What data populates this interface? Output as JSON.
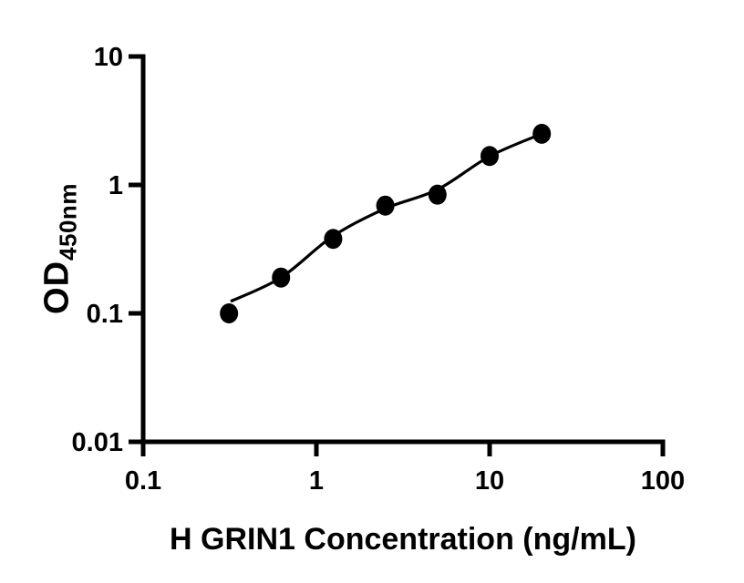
{
  "chart_data": {
    "type": "scatter",
    "title": "",
    "xlabel": "H GRIN1 Concentration (ng/mL)",
    "ylabel_main": "OD",
    "ylabel_sub": "450nm",
    "x_scale": "log",
    "y_scale": "log",
    "xlim": [
      0.1,
      100
    ],
    "ylim": [
      0.01,
      10
    ],
    "x_ticks": [
      0.1,
      1,
      10,
      100
    ],
    "x_tick_labels": [
      "0.1",
      "1",
      "10",
      "100"
    ],
    "y_ticks": [
      10,
      1,
      0.1,
      0.01
    ],
    "y_tick_labels": [
      "10",
      "1",
      "0.1",
      "0.01"
    ],
    "grid": false,
    "legend": null,
    "series": [
      {
        "name": "standard-points",
        "type": "scatter",
        "marker": "circle",
        "marker_color": "#000000",
        "x": [
          0.313,
          0.625,
          1.25,
          2.5,
          5,
          10,
          20
        ],
        "y": [
          0.1,
          0.19,
          0.38,
          0.69,
          0.84,
          1.68,
          2.5
        ]
      },
      {
        "name": "fit-curve",
        "type": "line",
        "line_color": "#000000",
        "x": [
          0.32,
          0.625,
          1.25,
          2.5,
          5,
          10,
          20
        ],
        "y": [
          0.124,
          0.19,
          0.4,
          0.655,
          0.92,
          1.67,
          2.5
        ]
      }
    ],
    "colors": {
      "foreground": "#000000",
      "background": "#ffffff"
    }
  }
}
